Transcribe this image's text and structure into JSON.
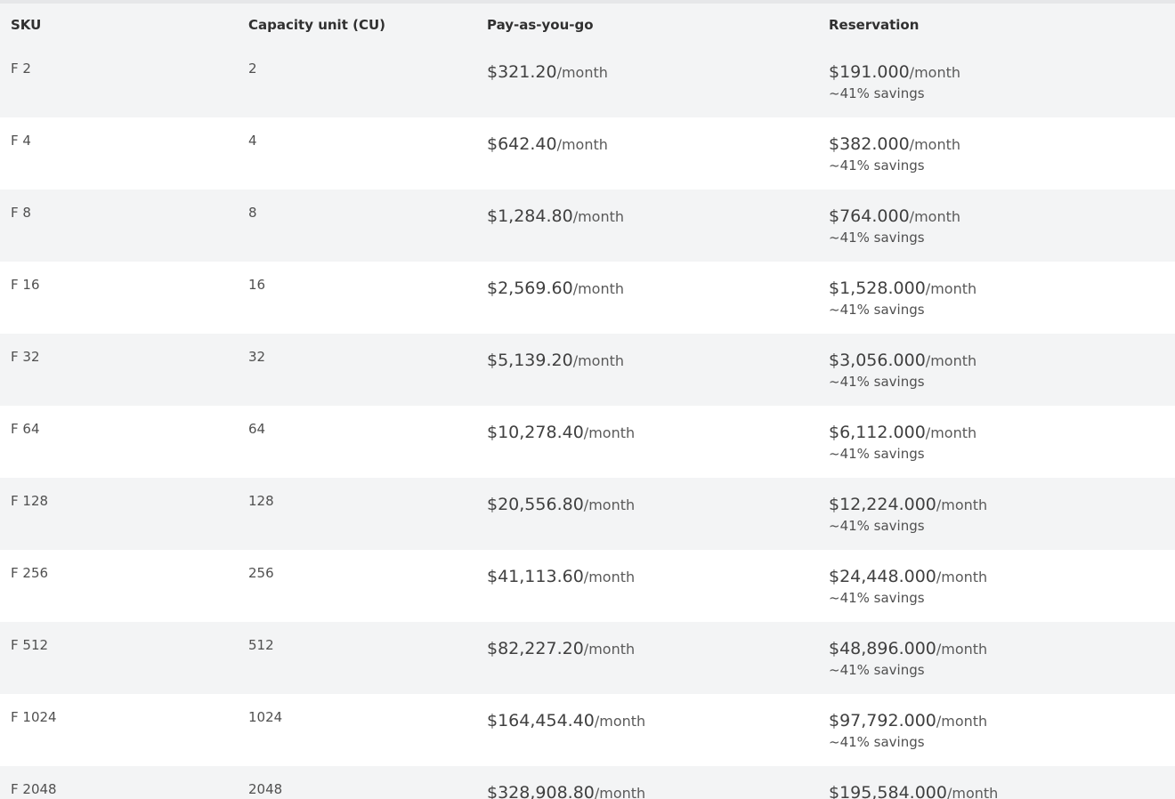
{
  "header": {
    "sku": "SKU",
    "cu": "Capacity unit (CU)",
    "payg": "Pay-as-you-go",
    "reservation": "Reservation"
  },
  "rows": [
    {
      "sku": "F 2",
      "cu": "2",
      "payg": "$321.20",
      "payg_unit": "/month",
      "res": "$191.000",
      "res_unit": "/month",
      "savings": "~41% savings"
    },
    {
      "sku": "F 4",
      "cu": "4",
      "payg": "$642.40",
      "payg_unit": "/month",
      "res": "$382.000",
      "res_unit": "/month",
      "savings": "~41% savings"
    },
    {
      "sku": "F 8",
      "cu": "8",
      "payg": "$1,284.80",
      "payg_unit": "/month",
      "res": "$764.000",
      "res_unit": "/month",
      "savings": "~41% savings"
    },
    {
      "sku": "F 16",
      "cu": "16",
      "payg": "$2,569.60",
      "payg_unit": "/month",
      "res": "$1,528.000",
      "res_unit": "/month",
      "savings": "~41% savings"
    },
    {
      "sku": "F 32",
      "cu": "32",
      "payg": "$5,139.20",
      "payg_unit": "/month",
      "res": "$3,056.000",
      "res_unit": "/month",
      "savings": "~41% savings"
    },
    {
      "sku": "F 64",
      "cu": "64",
      "payg": "$10,278.40",
      "payg_unit": "/month",
      "res": "$6,112.000",
      "res_unit": "/month",
      "savings": "~41% savings"
    },
    {
      "sku": "F 128",
      "cu": "128",
      "payg": "$20,556.80",
      "payg_unit": "/month",
      "res": "$12,224.000",
      "res_unit": "/month",
      "savings": "~41% savings"
    },
    {
      "sku": "F 256",
      "cu": "256",
      "payg": "$41,113.60",
      "payg_unit": "/month",
      "res": "$24,448.000",
      "res_unit": "/month",
      "savings": "~41% savings"
    },
    {
      "sku": "F 512",
      "cu": "512",
      "payg": "$82,227.20",
      "payg_unit": "/month",
      "res": "$48,896.000",
      "res_unit": "/month",
      "savings": "~41% savings"
    },
    {
      "sku": "F 1024",
      "cu": "1024",
      "payg": "$164,454.40",
      "payg_unit": "/month",
      "res": "$97,792.000",
      "res_unit": "/month",
      "savings": "~41% savings"
    },
    {
      "sku": "F 2048",
      "cu": "2048",
      "payg": "$328,908.80",
      "payg_unit": "/month",
      "res": "$195,584.000",
      "res_unit": "/month",
      "savings": ""
    }
  ]
}
